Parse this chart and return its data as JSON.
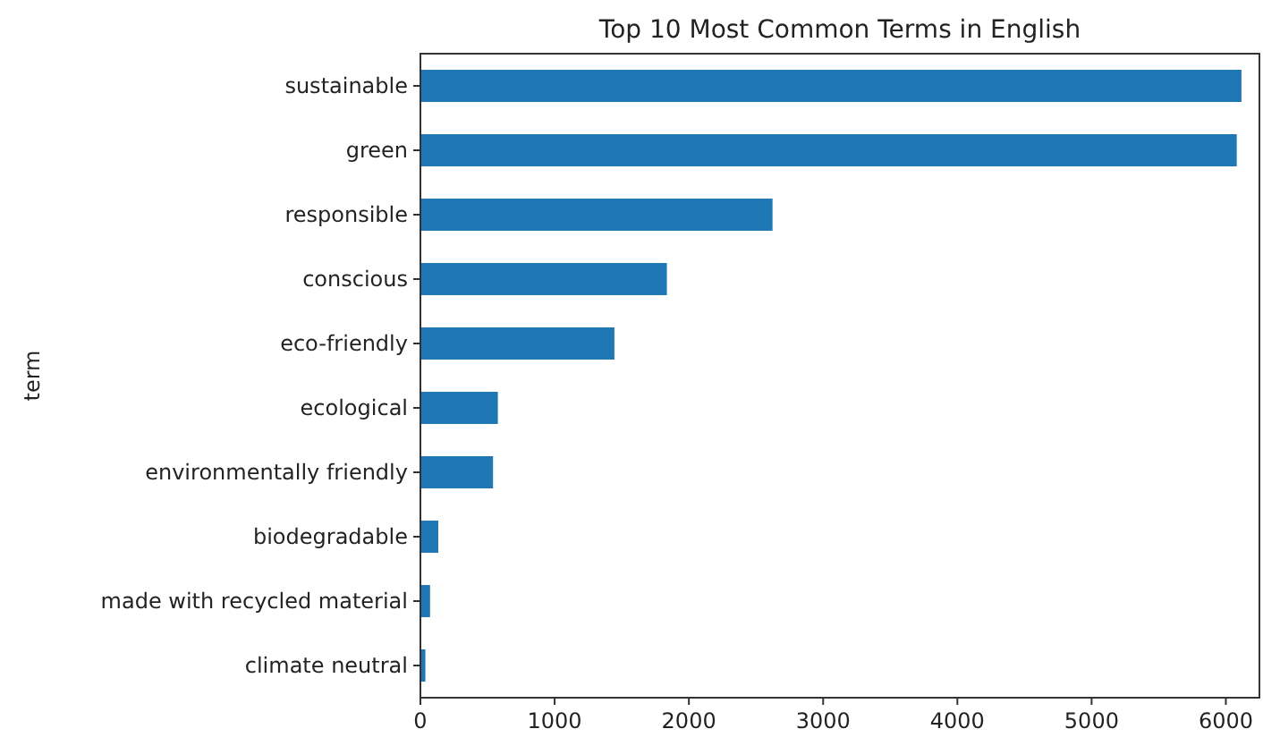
{
  "chart_data": {
    "type": "bar",
    "orientation": "horizontal",
    "title": "Top 10 Most Common Terms in English",
    "ylabel": "term",
    "categories": [
      "sustainable",
      "green",
      "responsible",
      "conscious",
      "eco-friendly",
      "ecological",
      "environmentally friendly",
      "biodegradable",
      "made with recycled material",
      "climate neutral"
    ],
    "values": [
      6116,
      6081,
      2623,
      1836,
      1445,
      577,
      541,
      133,
      72,
      37
    ],
    "color": "#1f77b4",
    "xlim": [
      0,
      6250
    ],
    "xticks": [
      0,
      1000,
      2000,
      3000,
      4000,
      5000,
      6000
    ],
    "grid": false
  }
}
